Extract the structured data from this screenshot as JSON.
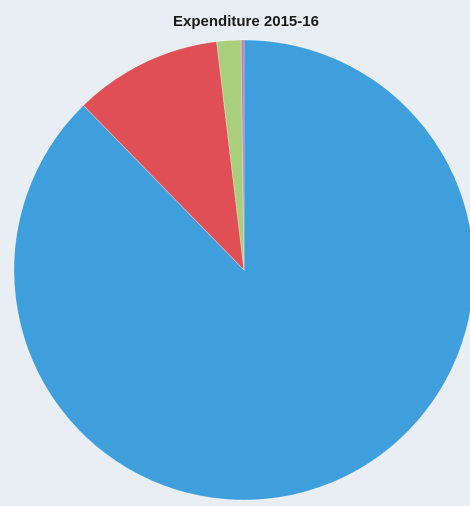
{
  "chart_data": {
    "type": "pie",
    "title": "Expenditure 2015-16",
    "values": [
      87.7,
      10.4,
      1.7,
      0.2
    ],
    "colors": [
      "#3f9fdc",
      "#df4f55",
      "#a9cf7c",
      "#c77bb0"
    ]
  }
}
